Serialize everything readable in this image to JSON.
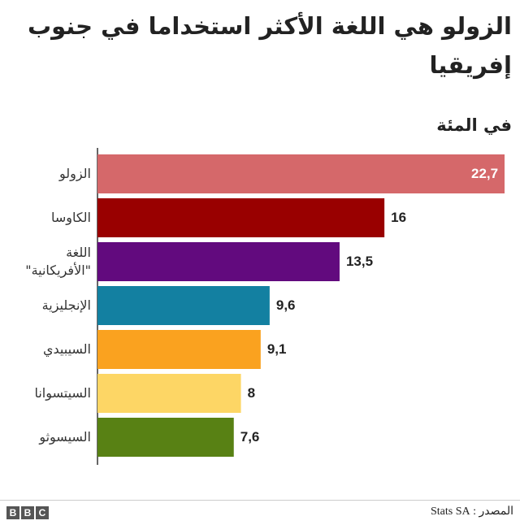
{
  "chart_data": {
    "type": "bar",
    "orientation": "horizontal",
    "title": "الزولو هي اللغة الأكثر استخداما في جنوب إفريقيا",
    "subtitle": "في المئة",
    "categories": [
      "الزولو",
      "الكاوسا",
      "اللغة \"الأفريكانية\"",
      "الإنجليزية",
      "السيبيدي",
      "السيتسوانا",
      "السيسوثو"
    ],
    "values": [
      22.7,
      16,
      13.5,
      9.6,
      9.1,
      8,
      7.6
    ],
    "value_labels": [
      "22,7",
      "16",
      "13,5",
      "9,6",
      "9,1",
      "8",
      "7,6"
    ],
    "colors": [
      "#d5686a",
      "#990000",
      "#620a7e",
      "#1380a1",
      "#faa21f",
      "#fdd665",
      "#588114"
    ]
  },
  "footer": {
    "logo": "BBC",
    "source": "المصدر : Stats SA"
  }
}
